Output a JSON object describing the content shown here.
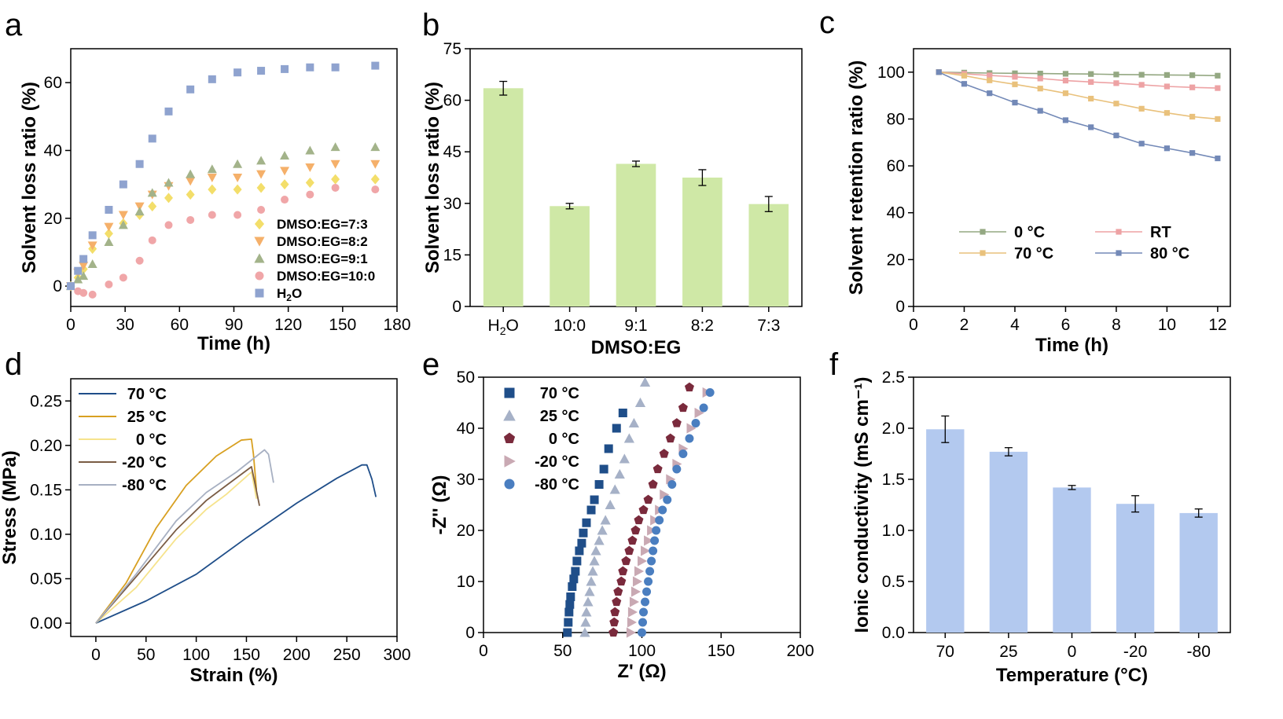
{
  "chart_data": [
    {
      "panel": "a",
      "type": "scatter",
      "xlabel": "Time (h)",
      "ylabel": "Solvent loss ratio (%)",
      "xlim": [
        0,
        180
      ],
      "ylim": [
        -6,
        70
      ],
      "xticks": [
        0,
        30,
        60,
        90,
        120,
        150,
        180
      ],
      "yticks": [
        0,
        20,
        40,
        60
      ],
      "legend": "bottom-right",
      "series": [
        {
          "name": "DMSO:EG=7:3",
          "marker": "diamond",
          "color": "#f3de6a",
          "x": [
            0,
            4,
            7,
            12,
            21,
            29,
            38,
            45,
            54,
            66,
            78,
            92,
            105,
            118,
            132,
            146,
            168
          ],
          "y": [
            0,
            2.5,
            5,
            11,
            15.5,
            18.5,
            21,
            23.5,
            26,
            27,
            28.5,
            28.5,
            29,
            30,
            30.5,
            31.5,
            31.5
          ]
        },
        {
          "name": "DMSO:EG=8:2",
          "marker": "triangle-down",
          "color": "#f5b06a",
          "x": [
            0,
            4,
            7,
            12,
            21,
            29,
            38,
            45,
            54,
            66,
            78,
            92,
            105,
            118,
            132,
            146,
            168
          ],
          "y": [
            0,
            4,
            6,
            12,
            17.5,
            21,
            23.5,
            27,
            29.5,
            31,
            32,
            32,
            33,
            34,
            35,
            36,
            36
          ]
        },
        {
          "name": "DMSO:EG=9:1",
          "marker": "triangle-up",
          "color": "#a3b38a",
          "x": [
            0,
            4,
            7,
            12,
            21,
            29,
            38,
            45,
            54,
            66,
            78,
            92,
            105,
            118,
            132,
            146,
            168
          ],
          "y": [
            0,
            2,
            3,
            6.5,
            13,
            18,
            22,
            27.5,
            30.5,
            33,
            34.5,
            36,
            37,
            38.5,
            40,
            41,
            41
          ]
        },
        {
          "name": "DMSO:EG=10:0",
          "marker": "circle",
          "color": "#f0a6a8",
          "x": [
            0,
            4,
            7,
            12,
            21,
            29,
            38,
            45,
            54,
            66,
            78,
            92,
            105,
            118,
            132,
            146,
            168
          ],
          "y": [
            0,
            -1.5,
            -2,
            -2.5,
            0.5,
            2.5,
            7.5,
            13.5,
            18,
            19.5,
            21,
            21,
            22.5,
            25.5,
            27,
            29,
            28.5
          ]
        },
        {
          "name": "H<sub>2</sub>O",
          "label": "H2O",
          "marker": "square",
          "color": "#8fa3cf",
          "x": [
            0,
            4,
            7,
            12,
            21,
            29,
            38,
            45,
            54,
            66,
            78,
            92,
            105,
            118,
            132,
            146,
            168
          ],
          "y": [
            0,
            4.5,
            8,
            15,
            22.5,
            30,
            36,
            43.5,
            51.5,
            58,
            61,
            63,
            63.5,
            64,
            64.5,
            64.5,
            65
          ]
        }
      ]
    },
    {
      "panel": "b",
      "type": "bar",
      "xlabel": "DMSO:EG",
      "ylabel": "Solvent loss ratio (%)",
      "ylim": [
        0,
        75
      ],
      "yticks": [
        0,
        15,
        30,
        45,
        60,
        75
      ],
      "categories": [
        "H2O",
        "10:0",
        "9:1",
        "8:2",
        "7:3"
      ],
      "values": [
        63.5,
        29.2,
        41.5,
        37.5,
        29.8
      ],
      "errors": [
        2,
        0.8,
        0.8,
        2.3,
        2.2
      ],
      "color": "#cfe8a6"
    },
    {
      "panel": "c",
      "type": "line",
      "xlabel": "Time (h)",
      "ylabel": "Solvent  retention ratio (%)",
      "xlim": [
        0,
        12.5
      ],
      "ylim": [
        0,
        110
      ],
      "xticks": [
        0,
        2,
        4,
        6,
        8,
        10,
        12
      ],
      "yticks": [
        0,
        20,
        40,
        60,
        80,
        100
      ],
      "legend": "lower-center",
      "series": [
        {
          "name": "0 °C",
          "color": "#94a882",
          "x": [
            1,
            2,
            3,
            4,
            5,
            6,
            7,
            8,
            9,
            10,
            11,
            12
          ],
          "y": [
            100,
            99.8,
            99.6,
            99.5,
            99.4,
            99.3,
            99.2,
            99,
            98.9,
            98.8,
            98.7,
            98.5
          ]
        },
        {
          "name": "RT",
          "color": "#eda2a4",
          "x": [
            1,
            2,
            3,
            4,
            5,
            6,
            7,
            8,
            9,
            10,
            11,
            12
          ],
          "y": [
            100,
            99.3,
            98.6,
            98,
            97.3,
            96.4,
            95.8,
            95.3,
            94.6,
            93.9,
            93.5,
            93.2
          ]
        },
        {
          "name": "70 °C",
          "color": "#e9c17c",
          "x": [
            1,
            2,
            3,
            4,
            5,
            6,
            7,
            8,
            9,
            10,
            11,
            12
          ],
          "y": [
            100,
            98.5,
            96.5,
            94.8,
            93,
            91,
            88.7,
            86.6,
            84.4,
            82.6,
            81,
            80
          ]
        },
        {
          "name": "80 °C",
          "color": "#7389b7",
          "x": [
            1,
            2,
            3,
            4,
            5,
            6,
            7,
            8,
            9,
            10,
            11,
            12
          ],
          "y": [
            100,
            95,
            91,
            87,
            83.5,
            79.5,
            76.5,
            73,
            69.5,
            67.5,
            65.5,
            63.2
          ]
        }
      ]
    },
    {
      "panel": "d",
      "type": "line",
      "xlabel": "Strain (%)",
      "ylabel": "Stress (MPa)",
      "xlim": [
        -25,
        300
      ],
      "ylim": [
        -0.015,
        0.275
      ],
      "xticks": [
        0,
        50,
        100,
        150,
        200,
        250,
        300
      ],
      "yticks": [
        0,
        0.05,
        0.1,
        0.15,
        0.2,
        0.25
      ],
      "ytick_labels": [
        "0.00",
        "0.05",
        "0.10",
        "0.15",
        "0.20",
        "0.25"
      ],
      "legend": "top-left",
      "series": [
        {
          "name": "70 °C",
          "color": "#1f4e89",
          "x": [
            0,
            50,
            100,
            150,
            200,
            240,
            265,
            270,
            275,
            279
          ],
          "y": [
            0,
            0.025,
            0.055,
            0.096,
            0.135,
            0.163,
            0.178,
            0.178,
            0.162,
            0.142
          ]
        },
        {
          "name": "25 °C",
          "color": "#d8a021",
          "x": [
            0,
            30,
            60,
            90,
            120,
            145,
            155,
            157,
            160
          ],
          "y": [
            0,
            0.045,
            0.107,
            0.155,
            0.188,
            0.206,
            0.207,
            0.19,
            0.15
          ]
        },
        {
          "name": "0 °C",
          "color": "#f6e38c",
          "x": [
            0,
            40,
            80,
            110,
            130,
            150,
            155,
            160
          ],
          "y": [
            0,
            0.04,
            0.095,
            0.128,
            0.145,
            0.165,
            0.17,
            0.14
          ]
        },
        {
          "name": "-20 °C",
          "color": "#7a5c44",
          "x": [
            0,
            40,
            80,
            110,
            130,
            155,
            158,
            163
          ],
          "y": [
            0,
            0.052,
            0.105,
            0.138,
            0.155,
            0.176,
            0.16,
            0.132
          ]
        },
        {
          "name": "-80 °C",
          "color": "#a7b0c2",
          "x": [
            0,
            40,
            80,
            110,
            140,
            168,
            172,
            177
          ],
          "y": [
            0,
            0.055,
            0.115,
            0.147,
            0.17,
            0.195,
            0.19,
            0.158
          ]
        }
      ]
    },
    {
      "panel": "e",
      "type": "scatter",
      "xlabel": "Z' (Ω)",
      "ylabel": "-Z'' (Ω)",
      "xlim": [
        0,
        200
      ],
      "ylim": [
        0,
        50
      ],
      "xticks": [
        0,
        50,
        100,
        150,
        200
      ],
      "yticks": [
        0,
        10,
        20,
        30,
        40,
        50
      ],
      "legend": "top-left",
      "series": [
        {
          "name": "70 °C",
          "marker": "square",
          "color": "#1f4e89",
          "x": [
            53,
            53.5,
            54,
            54.5,
            55,
            56,
            57,
            58,
            59,
            60.5,
            62,
            63,
            65,
            68,
            70,
            73,
            76,
            79,
            84,
            88
          ],
          "y": [
            0,
            2,
            4,
            5.5,
            7,
            9,
            10.5,
            12,
            14,
            16,
            17.5,
            19.5,
            21.5,
            24,
            26,
            29,
            32,
            36,
            40,
            43
          ]
        },
        {
          "name": "25 °C",
          "marker": "triangle-up",
          "color": "#a6b1c7",
          "x": [
            64,
            64.5,
            65,
            66,
            67,
            68,
            69,
            70,
            71,
            73,
            75,
            77,
            80,
            83,
            86,
            89,
            92,
            95,
            99,
            102
          ],
          "y": [
            0,
            2,
            4,
            6,
            8,
            10,
            12,
            14,
            16,
            18,
            20,
            22,
            25,
            28,
            31,
            34,
            38,
            41,
            45,
            49
          ]
        },
        {
          "name": "0 °C",
          "marker": "pentagon",
          "color": "#7a2a3c",
          "x": [
            82,
            82.5,
            83,
            84,
            85,
            87,
            88,
            90,
            92,
            94,
            96,
            98,
            101,
            104,
            107,
            110,
            114,
            118,
            122,
            126,
            130
          ],
          "y": [
            0,
            2,
            4,
            6,
            8,
            10,
            12,
            14,
            16,
            18,
            20,
            22,
            24,
            26,
            29,
            32,
            35,
            38,
            41,
            44,
            48
          ]
        },
        {
          "name": "-20 °C",
          "marker": "triangle-right",
          "color": "#c9a9b3",
          "x": [
            93,
            93.5,
            94,
            95,
            96,
            97,
            98,
            100,
            102,
            104,
            106,
            108,
            111,
            114,
            118,
            122,
            126,
            131,
            136,
            141
          ],
          "y": [
            0,
            2,
            4,
            6,
            8,
            10,
            12,
            14,
            16,
            18,
            20,
            22,
            24,
            27,
            30,
            33,
            36,
            40,
            43,
            47
          ]
        },
        {
          "name": "-80 °C",
          "marker": "circle",
          "color": "#4a7ec0",
          "x": [
            100,
            100.5,
            101,
            102,
            103,
            104,
            105,
            106,
            107,
            108,
            109,
            111,
            113,
            116,
            119,
            122,
            126,
            130,
            134,
            139,
            143
          ],
          "y": [
            0,
            2,
            4,
            6,
            8,
            10,
            12,
            14,
            16,
            18,
            20,
            22,
            24,
            26,
            29,
            32,
            35,
            38,
            41,
            44,
            47
          ]
        }
      ]
    },
    {
      "panel": "f",
      "type": "bar",
      "xlabel": "Temperature (°C)",
      "ylabel": "Ionic conductivity (mS cm⁻¹)",
      "ylim": [
        0,
        2.5
      ],
      "yticks": [
        0,
        0.5,
        1.0,
        1.5,
        2.0,
        2.5
      ],
      "ytick_labels": [
        "0.0",
        "0.5",
        "1.0",
        "1.5",
        "2.0",
        "2.5"
      ],
      "categories": [
        "70",
        "25",
        "0",
        "-20",
        "-80"
      ],
      "values": [
        1.99,
        1.77,
        1.42,
        1.26,
        1.17
      ],
      "errors": [
        0.13,
        0.04,
        0.02,
        0.08,
        0.04
      ],
      "color": "#b3c9ef"
    }
  ]
}
